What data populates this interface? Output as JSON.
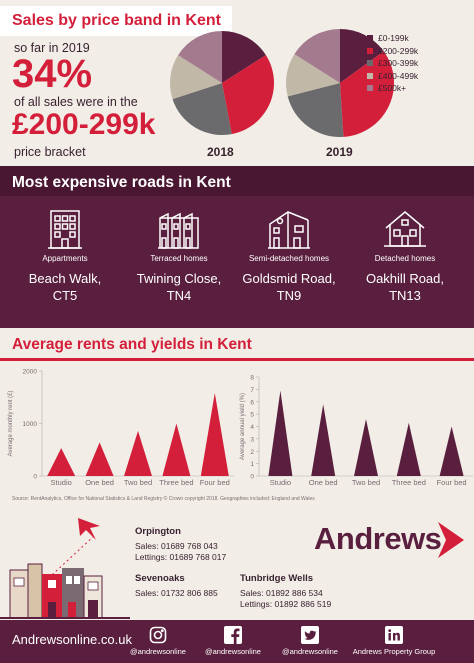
{
  "price_band": {
    "title": "Sales by price band in Kent",
    "line1": "so far in 2019",
    "percent": "34%",
    "line2": "of all sales were in the",
    "band": "£200-299k",
    "line3": "price bracket",
    "colors": [
      "#5a1f3e",
      "#d41f3a",
      "#6b6b6e",
      "#c2b8a8",
      "#a47a8f"
    ]
  },
  "roads": {
    "title": "Most expensive roads in Kent",
    "items": [
      {
        "kind": "Appartments",
        "name": "Beach Walk,",
        "post": "CT5",
        "icon": "apartment-building-icon"
      },
      {
        "kind": "Terraced homes",
        "name": "Twining Close,",
        "post": "TN4",
        "icon": "terraced-houses-icon"
      },
      {
        "kind": "Semi-detached homes",
        "name": "Goldsmid Road,",
        "post": "TN9",
        "icon": "semi-detached-house-icon"
      },
      {
        "kind": "Detached homes",
        "name": "Oakhill Road,",
        "post": "TN13",
        "icon": "detached-house-icon"
      }
    ]
  },
  "rents": {
    "title": "Average rents and yields in Kent",
    "source": "Source: RentAnalytics, Office for National Statistics & Land Registry © Crown copyright 2018. Geographies included: England and Wales"
  },
  "contacts": {
    "brand": "Andrews",
    "offices": [
      {
        "name": "Orpington",
        "lines": [
          "Sales: 01689 768 043",
          "Lettings: 01689 768 017"
        ]
      },
      {
        "name": "Sevenoaks",
        "lines": [
          "Sales: 01732 806 885"
        ]
      },
      {
        "name": "Tunbridge Wells",
        "lines": [
          "Sales: 01892 886 534",
          "Lettings: 01892 886 519"
        ]
      }
    ]
  },
  "footer": {
    "site": "Andrewsonline.co.uk",
    "social": [
      {
        "handle": "@andrewsonline",
        "icon": "instagram-icon"
      },
      {
        "handle": "@andrewsonline",
        "icon": "facebook-icon"
      },
      {
        "handle": "@andrewsonline",
        "icon": "twitter-icon"
      },
      {
        "handle": "Andrews Property Group",
        "icon": "linkedin-icon"
      }
    ]
  },
  "chart_data": [
    {
      "type": "pie",
      "title": "2018",
      "categories": [
        "£0-199k",
        "£200-299k",
        "£300-399k",
        "£400-499k",
        "£500k+"
      ],
      "values": [
        16,
        31,
        23,
        14,
        16
      ],
      "colors": [
        "#5a1f3e",
        "#d41f3a",
        "#6b6b6e",
        "#c2b8a8",
        "#a47a8f"
      ],
      "legend": "right"
    },
    {
      "type": "pie",
      "title": "2019",
      "categories": [
        "£0-199k",
        "£200-299k",
        "£300-399k",
        "£400-499k",
        "£500k+"
      ],
      "values": [
        15,
        34,
        22,
        13,
        16
      ],
      "colors": [
        "#5a1f3e",
        "#d41f3a",
        "#6b6b6e",
        "#c2b8a8",
        "#a47a8f"
      ],
      "legend": "right"
    },
    {
      "type": "bar",
      "categories": [
        "Studio",
        "One bed",
        "Two bed",
        "Three bed",
        "Four bed"
      ],
      "values": [
        530,
        640,
        860,
        1000,
        1580
      ],
      "ylabel": "Average monthly rent (£)",
      "ylim": [
        0,
        2000
      ],
      "yticks": [
        0,
        1000,
        2000
      ],
      "color": "#d41f3a"
    },
    {
      "type": "bar",
      "categories": [
        "Studio",
        "One bed",
        "Two bed",
        "Three bed",
        "Four bed"
      ],
      "values": [
        6.9,
        5.8,
        4.6,
        4.3,
        4.0
      ],
      "ylabel": "Average annual yield (%)",
      "ylim": [
        0,
        8
      ],
      "yticks": [
        0,
        1,
        2,
        3,
        4,
        5,
        6,
        7,
        8
      ],
      "color": "#5a1f3e"
    }
  ]
}
